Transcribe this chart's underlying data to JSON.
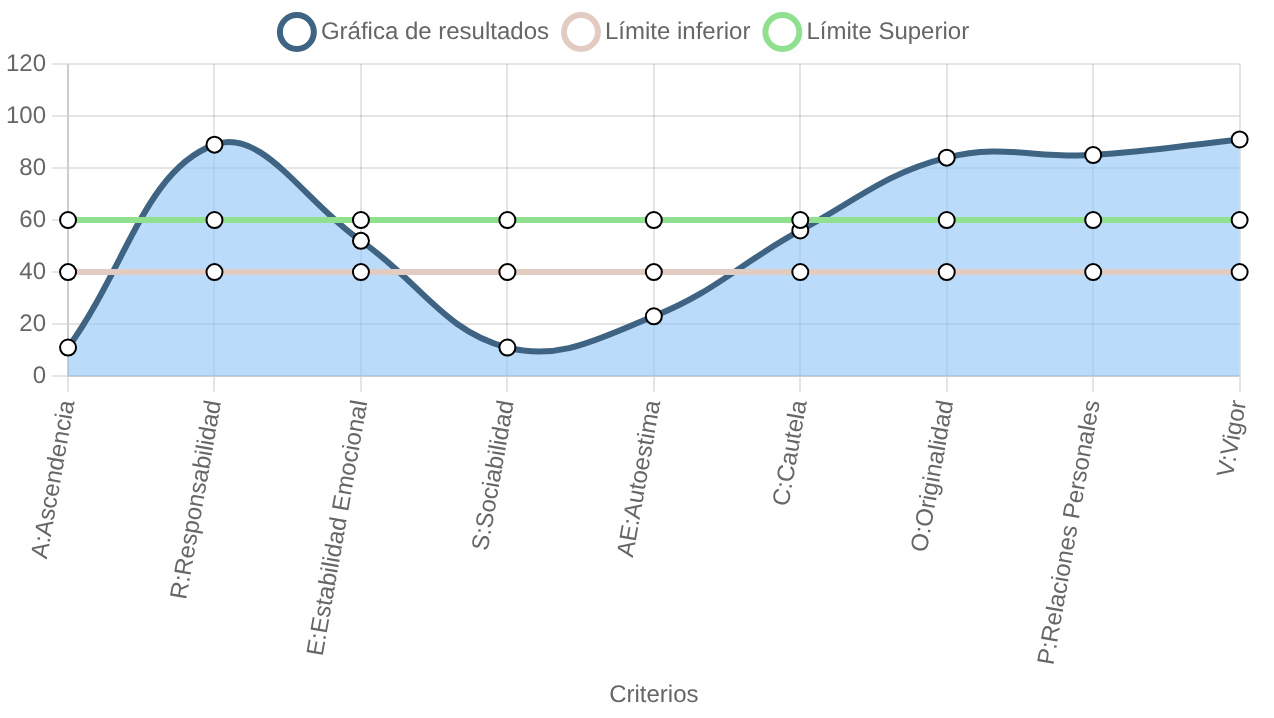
{
  "chart_data": {
    "type": "line",
    "xlabel": "Criterios",
    "categories": [
      "A:Ascendencia",
      "R:Responsabilidad",
      "E:Estabilidad Emocional",
      "S:Sociabilidad",
      "AE:Autoestima",
      "C:Cautela",
      "O:Originalidad",
      "P:Relaciones Personales",
      "V:Vigor"
    ],
    "series": [
      {
        "name": "Gráfica de resultados",
        "type": "area",
        "color": "#3e6383",
        "values": [
          11,
          89,
          52,
          11,
          23,
          56,
          84,
          85,
          91
        ]
      },
      {
        "name": "Límite inferior",
        "type": "line",
        "color": "#e2cbc1",
        "values": [
          40,
          40,
          40,
          40,
          40,
          40,
          40,
          40,
          40
        ]
      },
      {
        "name": "Límite Superior",
        "type": "line",
        "color": "#8fe08f",
        "values": [
          60,
          60,
          60,
          60,
          60,
          60,
          60,
          60,
          60
        ]
      }
    ],
    "ylim": [
      0,
      120
    ],
    "yticks": [
      0,
      20,
      40,
      60,
      80,
      100,
      120
    ],
    "grid": true,
    "legend": "top",
    "marker": "circle",
    "line_style": "solid"
  }
}
